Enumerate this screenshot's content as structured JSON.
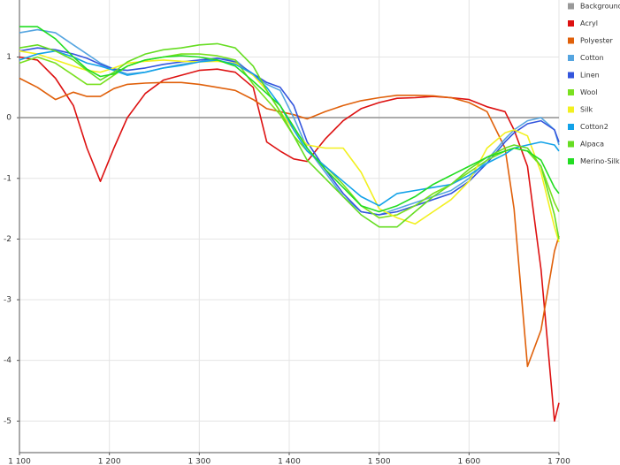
{
  "chart_data": {
    "type": "line",
    "legend": "right",
    "grid": true,
    "x": [
      1100,
      1120,
      1140,
      1160,
      1175,
      1190,
      1205,
      1220,
      1240,
      1260,
      1280,
      1300,
      1320,
      1340,
      1360,
      1375,
      1390,
      1405,
      1420,
      1440,
      1460,
      1480,
      1500,
      1520,
      1540,
      1560,
      1580,
      1600,
      1620,
      1640,
      1650,
      1665,
      1680,
      1695,
      1700
    ],
    "xlim": [
      1100,
      1700
    ],
    "xticks": [
      {
        "value": 1100,
        "label": "1 100"
      },
      {
        "value": 1200,
        "label": "1 200"
      },
      {
        "value": 1300,
        "label": "1 300"
      },
      {
        "value": 1400,
        "label": "1 400"
      },
      {
        "value": 1500,
        "label": "1 500"
      },
      {
        "value": 1600,
        "label": "1 600"
      },
      {
        "value": 1700,
        "label": "1 700"
      }
    ],
    "ylim": [
      -5.52,
      1.94
    ],
    "yticks": [
      1,
      0,
      -1,
      -2,
      -3,
      -4,
      -5
    ],
    "series": [
      {
        "name": "Background",
        "color": "#999999",
        "values": [
          0,
          0,
          0,
          0,
          0,
          0,
          0,
          0,
          0,
          0,
          0,
          0,
          0,
          0,
          0,
          0,
          0,
          0,
          0,
          0,
          0,
          0,
          0,
          0,
          0,
          0,
          0,
          0,
          0,
          0,
          0,
          0,
          0,
          0,
          0
        ]
      },
      {
        "name": "Acryl",
        "color": "#dd1111",
        "values": [
          1.0,
          0.95,
          0.65,
          0.2,
          -0.5,
          -1.05,
          -0.5,
          0.0,
          0.4,
          0.62,
          0.7,
          0.78,
          0.8,
          0.75,
          0.5,
          -0.4,
          -0.55,
          -0.68,
          -0.72,
          -0.35,
          -0.05,
          0.15,
          0.25,
          0.32,
          0.33,
          0.35,
          0.33,
          0.3,
          0.18,
          0.1,
          -0.2,
          -0.8,
          -2.5,
          -5.0,
          -4.7
        ]
      },
      {
        "name": "Polyester",
        "color": "#e0600a",
        "values": [
          0.65,
          0.5,
          0.3,
          0.42,
          0.35,
          0.35,
          0.48,
          0.55,
          0.57,
          0.58,
          0.58,
          0.55,
          0.5,
          0.45,
          0.3,
          0.15,
          0.1,
          0.05,
          -0.02,
          0.1,
          0.2,
          0.28,
          0.33,
          0.37,
          0.37,
          0.36,
          0.33,
          0.25,
          0.1,
          -0.5,
          -1.5,
          -4.1,
          -3.5,
          -2.2,
          -1.95
        ]
      },
      {
        "name": "Cotton",
        "color": "#55a5e0",
        "values": [
          1.4,
          1.45,
          1.4,
          1.2,
          1.05,
          0.9,
          0.8,
          0.72,
          0.75,
          0.82,
          0.88,
          0.92,
          0.98,
          0.95,
          0.7,
          0.55,
          0.45,
          0.0,
          -0.5,
          -0.9,
          -1.3,
          -1.55,
          -1.6,
          -1.5,
          -1.4,
          -1.3,
          -1.2,
          -1.0,
          -0.7,
          -0.35,
          -0.2,
          -0.05,
          0.0,
          -0.2,
          -0.45
        ]
      },
      {
        "name": "Linen",
        "color": "#3355dd",
        "values": [
          1.1,
          1.15,
          1.12,
          1.05,
          0.98,
          0.88,
          0.8,
          0.78,
          0.82,
          0.88,
          0.92,
          0.95,
          0.98,
          0.92,
          0.72,
          0.58,
          0.5,
          0.2,
          -0.4,
          -0.85,
          -1.25,
          -1.55,
          -1.6,
          -1.55,
          -1.45,
          -1.35,
          -1.25,
          -1.05,
          -0.75,
          -0.4,
          -0.25,
          -0.1,
          -0.05,
          -0.2,
          -0.4
        ]
      },
      {
        "name": "Wool",
        "color": "#7ae020",
        "values": [
          0.9,
          1.0,
          0.9,
          0.7,
          0.55,
          0.55,
          0.7,
          0.85,
          0.95,
          1.0,
          1.05,
          1.05,
          1.02,
          0.95,
          0.55,
          0.3,
          0.05,
          -0.3,
          -0.55,
          -0.8,
          -1.1,
          -1.45,
          -1.65,
          -1.6,
          -1.45,
          -1.25,
          -1.1,
          -0.9,
          -0.7,
          -0.55,
          -0.5,
          -0.55,
          -0.8,
          -1.4,
          -1.55
        ]
      },
      {
        "name": "Silk",
        "color": "#f2f020",
        "values": [
          1.1,
          1.05,
          0.95,
          0.85,
          0.78,
          0.75,
          0.82,
          0.9,
          0.93,
          0.95,
          0.93,
          0.92,
          0.93,
          0.9,
          0.7,
          0.45,
          0.1,
          -0.2,
          -0.45,
          -0.5,
          -0.5,
          -0.9,
          -1.5,
          -1.65,
          -1.75,
          -1.55,
          -1.35,
          -1.05,
          -0.5,
          -0.25,
          -0.2,
          -0.3,
          -0.9,
          -1.8,
          -2.05
        ]
      },
      {
        "name": "Cotton2",
        "color": "#12a2e8",
        "values": [
          0.95,
          1.05,
          1.1,
          1.0,
          0.9,
          0.85,
          0.78,
          0.7,
          0.75,
          0.82,
          0.86,
          0.92,
          0.95,
          0.88,
          0.72,
          0.5,
          0.2,
          -0.2,
          -0.55,
          -0.8,
          -1.05,
          -1.3,
          -1.45,
          -1.25,
          -1.2,
          -1.15,
          -1.1,
          -0.95,
          -0.75,
          -0.6,
          -0.5,
          -0.45,
          -0.4,
          -0.45,
          -0.55
        ]
      },
      {
        "name": "Alpaca",
        "color": "#66dd22",
        "values": [
          1.15,
          1.2,
          1.1,
          0.95,
          0.78,
          0.62,
          0.75,
          0.92,
          1.05,
          1.12,
          1.15,
          1.2,
          1.22,
          1.15,
          0.85,
          0.45,
          0.1,
          -0.3,
          -0.7,
          -1.0,
          -1.3,
          -1.6,
          -1.8,
          -1.8,
          -1.55,
          -1.3,
          -1.1,
          -0.85,
          -0.65,
          -0.5,
          -0.45,
          -0.5,
          -0.8,
          -1.6,
          -2.0
        ]
      },
      {
        "name": "Merino-Silk",
        "color": "#22dd22",
        "values": [
          1.5,
          1.5,
          1.3,
          1.0,
          0.8,
          0.68,
          0.72,
          0.85,
          0.95,
          1.0,
          1.02,
          1.0,
          0.95,
          0.85,
          0.6,
          0.4,
          0.2,
          -0.15,
          -0.5,
          -0.85,
          -1.15,
          -1.45,
          -1.55,
          -1.45,
          -1.3,
          -1.1,
          -0.95,
          -0.8,
          -0.65,
          -0.55,
          -0.5,
          -0.55,
          -0.7,
          -1.15,
          -1.25
        ]
      }
    ]
  }
}
